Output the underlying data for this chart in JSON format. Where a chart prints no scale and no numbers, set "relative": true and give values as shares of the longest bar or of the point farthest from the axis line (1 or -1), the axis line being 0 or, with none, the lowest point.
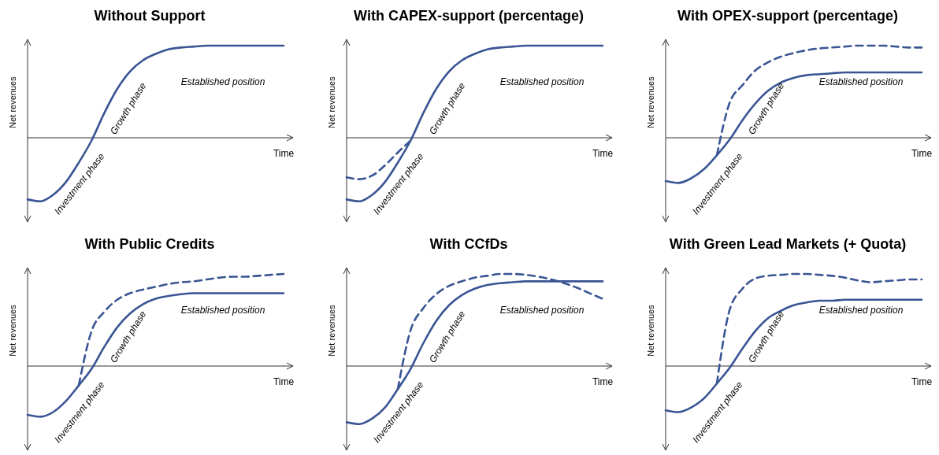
{
  "chart_data": [
    {
      "type": "line",
      "title": "Without Support",
      "xlabel": "Time",
      "ylabel": "Net revenues",
      "relative": true,
      "categories": [
        null,
        null,
        null,
        null,
        null,
        null,
        null,
        null,
        null,
        null,
        null,
        null,
        null,
        null,
        null,
        null,
        null,
        null,
        null,
        null,
        null
      ],
      "annotations": [
        "Investment phase",
        "Growth phase",
        "Established position"
      ],
      "series": [
        {
          "color": "#3a5594",
          "line_style": "solid",
          "values": [
            -0.67,
            -0.69,
            -0.62,
            -0.48,
            -0.27,
            -0.03,
            0.27,
            0.53,
            0.72,
            0.84,
            0.91,
            0.96,
            0.98,
            0.99,
            1,
            1,
            1,
            1,
            1,
            1,
            1
          ]
        }
      ]
    },
    {
      "type": "line",
      "title": "With CAPEX-support (percentage)",
      "xlabel": "Time",
      "ylabel": "Net revenues",
      "relative": true,
      "categories": [
        null,
        null,
        null,
        null,
        null,
        null,
        null,
        null,
        null,
        null,
        null,
        null,
        null,
        null,
        null,
        null,
        null,
        null,
        null,
        null,
        null
      ],
      "annotations": [
        "Investment phase",
        "Growth phase",
        "Established position"
      ],
      "series": [
        {
          "color": "#3a5594",
          "line_style": "solid",
          "values": [
            -0.67,
            -0.69,
            -0.62,
            -0.48,
            -0.27,
            -0.03,
            0.27,
            0.53,
            0.72,
            0.84,
            0.91,
            0.96,
            0.98,
            0.99,
            1,
            1,
            1,
            1,
            1,
            1,
            1
          ]
        },
        {
          "color": "#3a5594",
          "line_style": "dashed",
          "values": [
            -0.43,
            -0.45,
            -0.41,
            -0.3,
            -0.16,
            -0.03,
            null,
            null,
            null,
            null,
            null,
            null,
            null,
            null,
            null,
            null,
            null,
            null,
            null,
            null,
            null
          ]
        }
      ]
    },
    {
      "type": "line",
      "title": "With OPEX-support (percentage)",
      "xlabel": "Time",
      "ylabel": "Net revenues",
      "relative": true,
      "categories": [
        null,
        null,
        null,
        null,
        null,
        null,
        null,
        null,
        null,
        null,
        null,
        null,
        null,
        null,
        null,
        null,
        null,
        null,
        null,
        null,
        null
      ],
      "annotations": [
        "Investment phase",
        "Growth phase",
        "Established position"
      ],
      "series": [
        {
          "color": "#3a5594",
          "line_style": "solid",
          "values": [
            -0.47,
            -0.49,
            -0.44,
            -0.34,
            -0.19,
            -0.02,
            0.19,
            0.37,
            0.51,
            0.6,
            0.65,
            0.68,
            0.69,
            0.7,
            0.71,
            0.71,
            0.71,
            0.71,
            0.71,
            0.71,
            0.71
          ]
        },
        {
          "color": "#3a5594",
          "line_style": "dashed",
          "values": [
            null,
            null,
            null,
            null,
            -0.19,
            0.38,
            0.57,
            0.73,
            0.82,
            0.88,
            0.92,
            0.95,
            0.97,
            0.98,
            0.99,
            1,
            1,
            1,
            0.99,
            0.98,
            0.98
          ]
        }
      ]
    },
    {
      "type": "line",
      "title": "With Public Credits",
      "xlabel": "Time",
      "ylabel": "Net revenues",
      "relative": true,
      "categories": [
        null,
        null,
        null,
        null,
        null,
        null,
        null,
        null,
        null,
        null,
        null,
        null,
        null,
        null,
        null,
        null,
        null,
        null,
        null,
        null,
        null
      ],
      "annotations": [
        "Investment phase",
        "Growth phase",
        "Established position"
      ],
      "series": [
        {
          "color": "#3a5594",
          "line_style": "solid",
          "values": [
            -0.53,
            -0.55,
            -0.5,
            -0.38,
            -0.21,
            -0.03,
            0.21,
            0.42,
            0.57,
            0.67,
            0.73,
            0.76,
            0.78,
            0.79,
            0.79,
            0.79,
            0.79,
            0.79,
            0.79,
            0.79,
            0.79
          ]
        },
        {
          "color": "#3a5594",
          "line_style": "dashed",
          "values": [
            null,
            null,
            null,
            null,
            -0.21,
            0.38,
            0.59,
            0.72,
            0.79,
            0.83,
            0.86,
            0.89,
            0.91,
            0.92,
            0.94,
            0.96,
            0.97,
            0.97,
            0.98,
            0.99,
            1
          ]
        }
      ]
    },
    {
      "type": "line",
      "title": "With CCfDs",
      "xlabel": "Time",
      "ylabel": "Net revenues",
      "relative": true,
      "categories": [
        null,
        null,
        null,
        null,
        null,
        null,
        null,
        null,
        null,
        null,
        null,
        null,
        null,
        null,
        null,
        null,
        null,
        null,
        null,
        null,
        null
      ],
      "annotations": [
        "Investment phase",
        "Growth phase",
        "Established position"
      ],
      "series": [
        {
          "color": "#3a5594",
          "line_style": "solid",
          "values": [
            -0.61,
            -0.63,
            -0.57,
            -0.45,
            -0.25,
            -0.03,
            0.25,
            0.49,
            0.66,
            0.77,
            0.84,
            0.88,
            0.9,
            0.91,
            0.92,
            0.92,
            0.92,
            0.92,
            0.92,
            0.92,
            0.92
          ]
        },
        {
          "color": "#3a5594",
          "line_style": "dashed",
          "values": [
            null,
            null,
            null,
            null,
            -0.25,
            0.39,
            0.63,
            0.78,
            0.87,
            0.92,
            0.96,
            0.98,
            1,
            1,
            0.99,
            0.97,
            0.94,
            0.9,
            0.85,
            0.79,
            0.73
          ]
        }
      ]
    },
    {
      "type": "line",
      "title": "With Green Lead Markets (+ Quota)",
      "xlabel": "Time",
      "ylabel": "Net revenues",
      "relative": true,
      "categories": [
        null,
        null,
        null,
        null,
        null,
        null,
        null,
        null,
        null,
        null,
        null,
        null,
        null,
        null,
        null,
        null,
        null,
        null,
        null,
        null,
        null
      ],
      "annotations": [
        "Investment phase",
        "Growth phase",
        "Established position"
      ],
      "series": [
        {
          "color": "#3a5594",
          "line_style": "solid",
          "values": [
            -0.48,
            -0.5,
            -0.45,
            -0.35,
            -0.19,
            -0.02,
            0.19,
            0.38,
            0.52,
            0.6,
            0.66,
            0.69,
            0.71,
            0.71,
            0.72,
            0.72,
            0.72,
            0.72,
            0.72,
            0.72,
            0.72
          ]
        },
        {
          "color": "#3a5594",
          "line_style": "dashed",
          "values": [
            null,
            null,
            null,
            null,
            -0.19,
            0.61,
            0.84,
            0.95,
            0.98,
            0.99,
            1,
            1,
            0.99,
            0.98,
            0.96,
            0.93,
            0.91,
            0.92,
            0.93,
            0.94,
            0.94
          ]
        }
      ]
    }
  ]
}
